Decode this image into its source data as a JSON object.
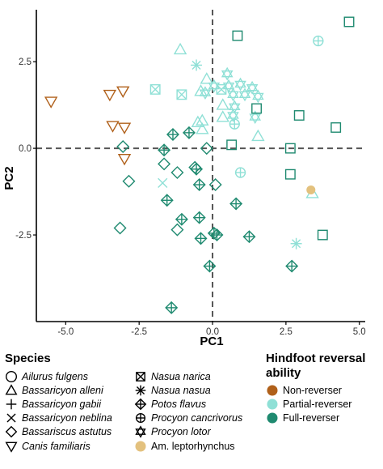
{
  "chart_data": {
    "type": "scatter",
    "xlabel": "PC1",
    "ylabel": "PC2",
    "xlim": [
      -6.0,
      5.2
    ],
    "ylim": [
      -5.0,
      4.0
    ],
    "xticks": [
      -5.0,
      -2.5,
      0.0,
      2.5,
      5.0
    ],
    "xtick_labels": [
      "-5.0",
      "-2.5",
      "0.0",
      "2.5",
      "5.0"
    ],
    "yticks": [
      -2.5,
      0.0,
      2.5
    ],
    "ytick_labels": [
      "-2.5",
      "0.0",
      "2.5"
    ],
    "reference_lines": {
      "x": 0,
      "y": 0,
      "style": "dashed"
    },
    "species_legend": {
      "title": "Species",
      "entries": [
        {
          "name": "Ailurus fulgens",
          "shape": "circle"
        },
        {
          "name": "Bassaricyon alleni",
          "shape": "triangle"
        },
        {
          "name": "Bassaricyon gabii",
          "shape": "plus"
        },
        {
          "name": "Bassaricyon neblina",
          "shape": "x"
        },
        {
          "name": "Bassariscus astutus",
          "shape": "diamond"
        },
        {
          "name": "Canis familiaris",
          "shape": "triangle-down"
        },
        {
          "name": "Nasua narica",
          "shape": "square-x"
        },
        {
          "name": "Nasua nasua",
          "shape": "asterisk"
        },
        {
          "name": "Potos flavus",
          "shape": "diamond-plus"
        },
        {
          "name": "Procyon cancrivorus",
          "shape": "circle-plus"
        },
        {
          "name": "Procyon lotor",
          "shape": "star-of-david"
        },
        {
          "name": "Am. leptorhynchus",
          "shape": "filled-circle",
          "upright": true
        }
      ]
    },
    "group_legend": {
      "title": "Hindfoot reversal ability",
      "entries": [
        {
          "name": "Non-reverser",
          "color": "#b0601a"
        },
        {
          "name": "Partial-reverser",
          "color": "#8fe0d6"
        },
        {
          "name": "Full-reverser",
          "color": "#1f8a70"
        }
      ]
    },
    "points": [
      {
        "x": -5.5,
        "y": 1.35,
        "shape": "triangle-down",
        "group": "Non-reverser"
      },
      {
        "x": -3.5,
        "y": 1.55,
        "shape": "triangle-down",
        "group": "Non-reverser"
      },
      {
        "x": -3.05,
        "y": 1.65,
        "shape": "triangle-down",
        "group": "Non-reverser"
      },
      {
        "x": -3.4,
        "y": 0.65,
        "shape": "triangle-down",
        "group": "Non-reverser"
      },
      {
        "x": -3.0,
        "y": 0.6,
        "shape": "triangle-down",
        "group": "Non-reverser"
      },
      {
        "x": -3.0,
        "y": -0.3,
        "shape": "triangle-down",
        "group": "Non-reverser"
      },
      {
        "x": -1.1,
        "y": 2.85,
        "shape": "triangle",
        "group": "Partial-reverser"
      },
      {
        "x": -0.55,
        "y": 2.4,
        "shape": "asterisk",
        "group": "Partial-reverser"
      },
      {
        "x": -1.95,
        "y": 1.7,
        "shape": "square-x",
        "group": "Partial-reverser"
      },
      {
        "x": -1.05,
        "y": 1.55,
        "shape": "square-x",
        "group": "Partial-reverser"
      },
      {
        "x": -0.25,
        "y": 1.6,
        "shape": "star-of-david",
        "group": "Partial-reverser"
      },
      {
        "x": -0.4,
        "y": 1.65,
        "shape": "triangle",
        "group": "Partial-reverser"
      },
      {
        "x": -0.2,
        "y": 2.0,
        "shape": "triangle",
        "group": "Partial-reverser"
      },
      {
        "x": 0.05,
        "y": 1.8,
        "shape": "star-of-david",
        "group": "Partial-reverser"
      },
      {
        "x": 0.3,
        "y": 1.7,
        "shape": "square-x",
        "group": "Partial-reverser"
      },
      {
        "x": 0.35,
        "y": 1.25,
        "shape": "triangle",
        "group": "Partial-reverser"
      },
      {
        "x": 0.35,
        "y": 0.9,
        "shape": "triangle",
        "group": "Partial-reverser"
      },
      {
        "x": 0.5,
        "y": 2.15,
        "shape": "star-of-david",
        "group": "Partial-reverser"
      },
      {
        "x": 0.55,
        "y": 1.8,
        "shape": "star-of-david",
        "group": "Partial-reverser"
      },
      {
        "x": 0.7,
        "y": 1.55,
        "shape": "star-of-david",
        "group": "Partial-reverser"
      },
      {
        "x": 0.75,
        "y": 1.2,
        "shape": "star-of-david",
        "group": "Partial-reverser"
      },
      {
        "x": 0.7,
        "y": 0.95,
        "shape": "star-of-david",
        "group": "Partial-reverser"
      },
      {
        "x": 0.75,
        "y": 0.7,
        "shape": "circle-plus",
        "group": "Partial-reverser"
      },
      {
        "x": 0.95,
        "y": 1.85,
        "shape": "star-of-david",
        "group": "Partial-reverser"
      },
      {
        "x": 1.1,
        "y": 1.55,
        "shape": "star-of-david",
        "group": "Partial-reverser"
      },
      {
        "x": 1.35,
        "y": 1.75,
        "shape": "star-of-david",
        "group": "Partial-reverser"
      },
      {
        "x": 1.55,
        "y": 1.5,
        "shape": "star-of-david",
        "group": "Partial-reverser"
      },
      {
        "x": 1.45,
        "y": 0.9,
        "shape": "star-of-david",
        "group": "Partial-reverser"
      },
      {
        "x": 1.55,
        "y": 0.35,
        "shape": "triangle",
        "group": "Partial-reverser"
      },
      {
        "x": 3.6,
        "y": 3.1,
        "shape": "circle-plus",
        "group": "Partial-reverser"
      },
      {
        "x": -0.5,
        "y": 0.75,
        "shape": "triangle",
        "group": "Partial-reverser"
      },
      {
        "x": -0.35,
        "y": 0.8,
        "shape": "triangle",
        "group": "Partial-reverser"
      },
      {
        "x": -0.35,
        "y": 0.55,
        "shape": "triangle",
        "group": "Partial-reverser"
      },
      {
        "x": -1.7,
        "y": -1.0,
        "shape": "x",
        "group": "Partial-reverser"
      },
      {
        "x": 0.95,
        "y": -0.7,
        "shape": "circle-plus",
        "group": "Partial-reverser"
      },
      {
        "x": 2.85,
        "y": -2.75,
        "shape": "asterisk",
        "group": "Partial-reverser"
      },
      {
        "x": 3.4,
        "y": -1.3,
        "shape": "triangle",
        "group": "Partial-reverser"
      },
      {
        "x": 4.65,
        "y": 3.65,
        "shape": "square",
        "group": "Full-reverser"
      },
      {
        "x": 0.85,
        "y": 3.25,
        "shape": "square",
        "group": "Full-reverser"
      },
      {
        "x": 1.5,
        "y": 1.15,
        "shape": "square",
        "group": "Full-reverser"
      },
      {
        "x": 2.95,
        "y": 0.95,
        "shape": "square",
        "group": "Full-reverser"
      },
      {
        "x": 4.2,
        "y": 0.6,
        "shape": "square",
        "group": "Full-reverser"
      },
      {
        "x": 0.65,
        "y": 0.1,
        "shape": "square",
        "group": "Full-reverser"
      },
      {
        "x": 2.65,
        "y": -0.75,
        "shape": "square",
        "group": "Full-reverser"
      },
      {
        "x": 2.65,
        "y": 0.0,
        "shape": "square",
        "group": "Full-reverser"
      },
      {
        "x": 3.75,
        "y": -2.5,
        "shape": "square",
        "group": "Full-reverser"
      },
      {
        "x": -3.05,
        "y": 0.05,
        "shape": "diamond",
        "group": "Full-reverser"
      },
      {
        "x": -2.85,
        "y": -0.95,
        "shape": "diamond",
        "group": "Full-reverser"
      },
      {
        "x": -3.15,
        "y": -2.3,
        "shape": "diamond",
        "group": "Full-reverser"
      },
      {
        "x": -1.65,
        "y": -0.45,
        "shape": "diamond",
        "group": "Full-reverser"
      },
      {
        "x": -1.2,
        "y": -0.7,
        "shape": "diamond",
        "group": "Full-reverser"
      },
      {
        "x": -0.6,
        "y": -0.55,
        "shape": "diamond",
        "group": "Full-reverser"
      },
      {
        "x": -0.2,
        "y": 0.0,
        "shape": "diamond",
        "group": "Full-reverser"
      },
      {
        "x": 0.1,
        "y": -1.05,
        "shape": "diamond",
        "group": "Full-reverser"
      },
      {
        "x": -1.2,
        "y": -2.35,
        "shape": "diamond",
        "group": "Full-reverser"
      },
      {
        "x": -1.35,
        "y": 0.4,
        "shape": "diamond-plus",
        "group": "Full-reverser"
      },
      {
        "x": -0.8,
        "y": 0.45,
        "shape": "diamond-plus",
        "group": "Full-reverser"
      },
      {
        "x": -1.65,
        "y": -0.05,
        "shape": "diamond-plus",
        "group": "Full-reverser"
      },
      {
        "x": -0.55,
        "y": -0.6,
        "shape": "diamond-plus",
        "group": "Full-reverser"
      },
      {
        "x": -0.45,
        "y": -1.05,
        "shape": "diamond-plus",
        "group": "Full-reverser"
      },
      {
        "x": -1.55,
        "y": -1.5,
        "shape": "diamond-plus",
        "group": "Full-reverser"
      },
      {
        "x": -1.05,
        "y": -2.05,
        "shape": "diamond-plus",
        "group": "Full-reverser"
      },
      {
        "x": -0.45,
        "y": -2.0,
        "shape": "diamond-plus",
        "group": "Full-reverser"
      },
      {
        "x": -0.4,
        "y": -2.6,
        "shape": "diamond-plus",
        "group": "Full-reverser"
      },
      {
        "x": 0.05,
        "y": -2.45,
        "shape": "diamond-plus",
        "group": "Full-reverser"
      },
      {
        "x": 0.15,
        "y": -2.5,
        "shape": "diamond-plus",
        "group": "Full-reverser"
      },
      {
        "x": -0.1,
        "y": -3.4,
        "shape": "diamond-plus",
        "group": "Full-reverser"
      },
      {
        "x": 0.8,
        "y": -1.6,
        "shape": "diamond-plus",
        "group": "Full-reverser"
      },
      {
        "x": 1.25,
        "y": -2.55,
        "shape": "diamond-plus",
        "group": "Full-reverser"
      },
      {
        "x": 2.7,
        "y": -3.4,
        "shape": "diamond-plus",
        "group": "Full-reverser"
      },
      {
        "x": -1.4,
        "y": -4.6,
        "shape": "diamond-plus",
        "group": "Full-reverser"
      },
      {
        "x": 3.35,
        "y": -1.2,
        "shape": "filled-circle",
        "group": "Am. leptorhynchus",
        "color": "#e3c17e"
      }
    ]
  }
}
